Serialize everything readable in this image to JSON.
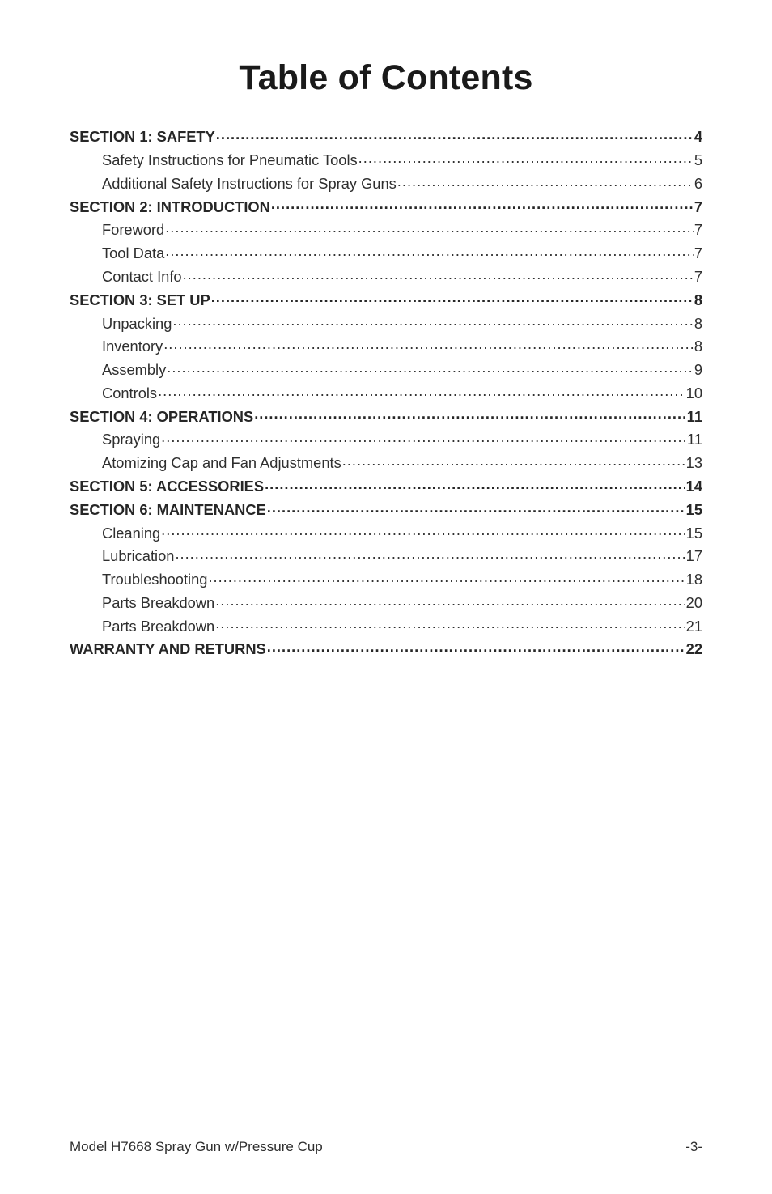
{
  "title": "Table of Contents",
  "toc": [
    {
      "level": 0,
      "label": "SECTION 1: SAFETY",
      "page": "4"
    },
    {
      "level": 1,
      "label": "Safety Instructions for Pneumatic Tools",
      "page": "5"
    },
    {
      "level": 1,
      "label": "Additional Safety Instructions for Spray Guns",
      "page": "6"
    },
    {
      "level": 0,
      "label": "SECTION 2: INTRODUCTION",
      "page": "7"
    },
    {
      "level": 1,
      "label": "Foreword",
      "page": "7"
    },
    {
      "level": 1,
      "label": "Tool Data",
      "page": "7"
    },
    {
      "level": 1,
      "label": "Contact Info",
      "page": "7"
    },
    {
      "level": 0,
      "label": "SECTION 3: SET UP",
      "page": "8"
    },
    {
      "level": 1,
      "label": "Unpacking",
      "page": "8"
    },
    {
      "level": 1,
      "label": "Inventory",
      "page": "8"
    },
    {
      "level": 1,
      "label": "Assembly",
      "page": "9"
    },
    {
      "level": 1,
      "label": "Controls",
      "page": "10"
    },
    {
      "level": 0,
      "label": "SECTION 4: OPERATIONS",
      "page": "11"
    },
    {
      "level": 1,
      "label": "Spraying",
      "page": "11"
    },
    {
      "level": 1,
      "label": "Atomizing Cap and Fan Adjustments",
      "page": "13"
    },
    {
      "level": 0,
      "label": "SECTION 5: ACCESSORIES",
      "page": "14"
    },
    {
      "level": 0,
      "label": "SECTION 6: MAINTENANCE",
      "page": "15"
    },
    {
      "level": 1,
      "label": "Cleaning",
      "page": "15"
    },
    {
      "level": 1,
      "label": "Lubrication",
      "page": "17"
    },
    {
      "level": 1,
      "label": "Troubleshooting",
      "page": "18"
    },
    {
      "level": 1,
      "label": "Parts Breakdown",
      "page": "20"
    },
    {
      "level": 1,
      "label": "Parts Breakdown",
      "page": "21"
    },
    {
      "level": 0,
      "label": "WARRANTY AND RETURNS",
      "page": "22"
    }
  ],
  "footer": {
    "left": "Model H7668 Spray Gun w/Pressure Cup",
    "right": "-3-"
  }
}
